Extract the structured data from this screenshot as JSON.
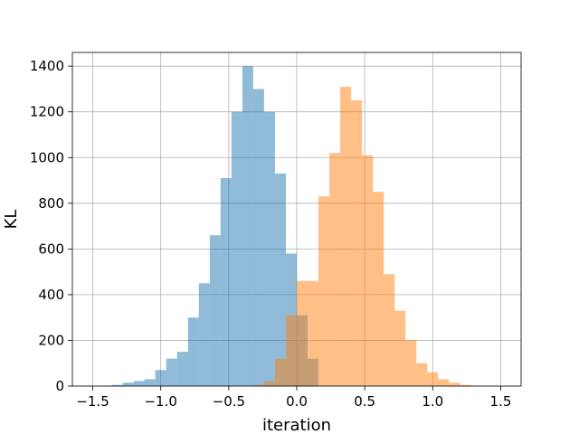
{
  "chart_data": {
    "type": "histogram",
    "title": "",
    "xlabel": "iteration",
    "ylabel": "KL",
    "xlim": [
      -1.65,
      1.65
    ],
    "ylim": [
      0,
      1460
    ],
    "grid": true,
    "legend": "none",
    "bin_width": 0.08,
    "x_ticks": [
      -1.5,
      -1.0,
      -0.5,
      0.0,
      0.5,
      1.0,
      1.5
    ],
    "x_tick_labels": [
      "−1.5",
      "−1.0",
      "−0.5",
      "0.0",
      "0.5",
      "1.0",
      "1.5"
    ],
    "y_ticks": [
      0,
      200,
      400,
      600,
      800,
      1000,
      1200,
      1400
    ],
    "y_tick_labels": [
      "0",
      "200",
      "400",
      "600",
      "800",
      "1000",
      "1200",
      "1400"
    ],
    "series": [
      {
        "color": "#1f77b4",
        "opacity": 0.5,
        "bin_starts": [
          -1.36,
          -1.28,
          -1.2,
          -1.12,
          -1.04,
          -0.96,
          -0.88,
          -0.8,
          -0.72,
          -0.64,
          -0.56,
          -0.48,
          -0.4,
          -0.32,
          -0.24,
          -0.16,
          -0.08,
          0.0,
          0.08
        ],
        "counts": [
          5,
          15,
          22,
          30,
          70,
          120,
          150,
          300,
          450,
          660,
          910,
          1200,
          1400,
          1300,
          1200,
          930,
          580,
          310,
          120
        ]
      },
      {
        "color": "#ff7f0e",
        "opacity": 0.5,
        "bin_starts": [
          -0.32,
          -0.24,
          -0.16,
          -0.08,
          0.0,
          0.08,
          0.16,
          0.24,
          0.32,
          0.4,
          0.48,
          0.56,
          0.64,
          0.72,
          0.8,
          0.88,
          0.96,
          1.04,
          1.12,
          1.2,
          1.28
        ],
        "counts": [
          5,
          20,
          120,
          310,
          460,
          460,
          830,
          1020,
          1310,
          1250,
          1010,
          850,
          490,
          330,
          200,
          100,
          60,
          30,
          15,
          5,
          2
        ]
      }
    ]
  }
}
